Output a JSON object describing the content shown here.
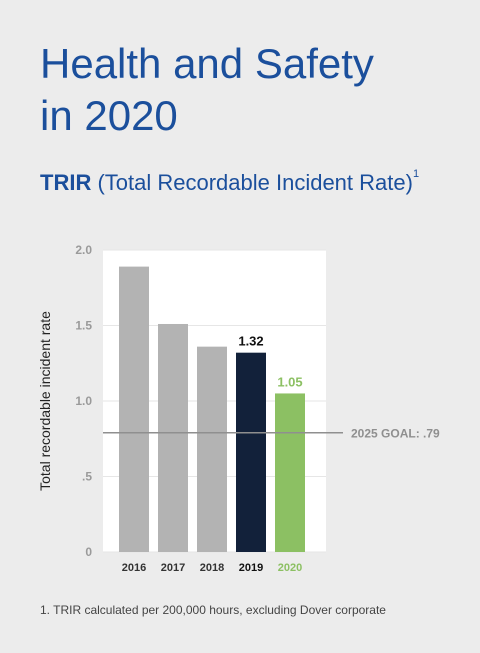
{
  "header": {
    "title_line1": "Health and Safety",
    "title_line2": "in 2020",
    "subtitle_bold": "TRIR",
    "subtitle_rest": " (Total Recordable Incident Rate)",
    "subtitle_footnote_mark": "1"
  },
  "footnote": "1. TRIR calculated per 200,000 hours, excluding Dover corporate",
  "colors": {
    "title": "#1b4f9c",
    "bar_default": "#b3b3b3",
    "bar_2019": "#12213a",
    "bar_2020": "#8cc063",
    "goal_line": "#8f8f8f"
  },
  "chart_data": {
    "type": "bar",
    "ylabel": "Total recordable incident rate",
    "ylim": [
      0,
      2.0
    ],
    "yticks": [
      {
        "value": 0,
        "label": "0"
      },
      {
        "value": 0.5,
        "label": ".5"
      },
      {
        "value": 1.0,
        "label": "1.0"
      },
      {
        "value": 1.5,
        "label": "1.5"
      },
      {
        "value": 2.0,
        "label": "2.0"
      }
    ],
    "grid": true,
    "categories": [
      "2016",
      "2017",
      "2018",
      "2019",
      "2020"
    ],
    "values": [
      1.89,
      1.51,
      1.36,
      1.32,
      1.05
    ],
    "data_labels": [
      "",
      "",
      "",
      "1.32",
      "1.05"
    ],
    "bar_colors": [
      "#b3b3b3",
      "#b3b3b3",
      "#b3b3b3",
      "#12213a",
      "#8cc063"
    ],
    "category_label_colors": [
      "#333333",
      "#333333",
      "#333333",
      "#111111",
      "#8cc063"
    ],
    "goal": {
      "value": 0.79,
      "label": "2025 GOAL: .79"
    }
  }
}
